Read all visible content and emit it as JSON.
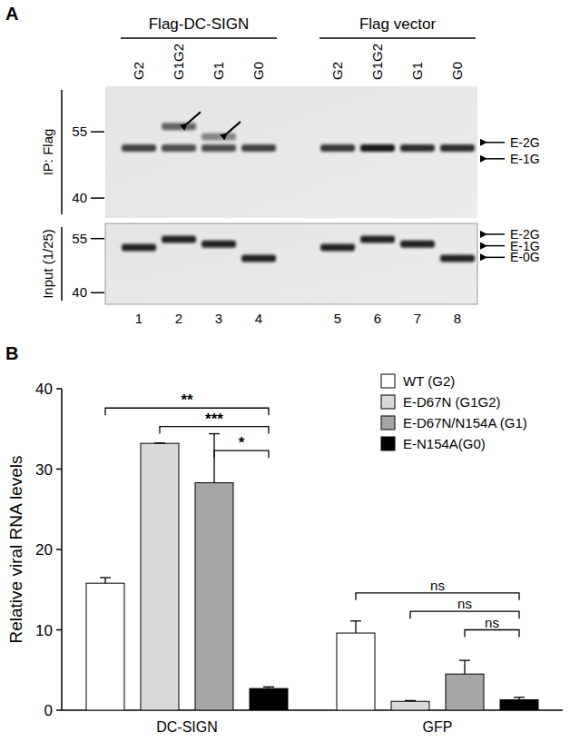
{
  "blot": {
    "label": "A",
    "groups": [
      {
        "label": "Flag-DC-SIGN",
        "lanes": [
          0,
          3
        ]
      },
      {
        "label": "Flag vector",
        "lanes": [
          4,
          7
        ]
      }
    ],
    "lanes": [
      "G2",
      "G1G2",
      "G1",
      "G0",
      "G2",
      "G1G2",
      "G1",
      "G0"
    ],
    "lane_numbers": [
      "1",
      "2",
      "3",
      "4",
      "5",
      "6",
      "7",
      "8"
    ],
    "panels": [
      {
        "label": "IP: Flag",
        "mw_range": [
          65.3,
          35.5
        ],
        "markers": [
          55,
          40
        ],
        "bands": [
          {
            "lane": 0,
            "mw": 51.3,
            "intensity": 0.75
          },
          {
            "lane": 1,
            "mw": 51.3,
            "intensity": 0.7
          },
          {
            "lane": 1,
            "mw": 56.2,
            "intensity": 0.6
          },
          {
            "lane": 2,
            "mw": 51.3,
            "intensity": 0.7
          },
          {
            "lane": 2,
            "mw": 53.9,
            "intensity": 0.45
          },
          {
            "lane": 3,
            "mw": 51.3,
            "intensity": 0.75
          },
          {
            "lane": 4,
            "mw": 51.3,
            "intensity": 0.8
          },
          {
            "lane": 5,
            "mw": 51.3,
            "intensity": 0.95
          },
          {
            "lane": 6,
            "mw": 51.3,
            "intensity": 0.85
          },
          {
            "lane": 7,
            "mw": 51.3,
            "intensity": 0.85
          }
        ],
        "arrows": [
          {
            "lane": 1,
            "mw": 56.2
          },
          {
            "lane": 2,
            "mw": 54.0
          }
        ],
        "right_labels": [
          {
            "label": "E-2G",
            "mw": 52.6
          },
          {
            "label": "E-1G",
            "mw": 48.9
          }
        ]
      },
      {
        "label": "Input (1/25)",
        "mw_range": [
          59.2,
          36.8
        ],
        "markers": [
          55,
          40
        ],
        "bands": [
          {
            "lane": 0,
            "mw": 52.5,
            "intensity": 0.9
          },
          {
            "lane": 1,
            "mw": 54.8,
            "intensity": 0.9
          },
          {
            "lane": 2,
            "mw": 53.5,
            "intensity": 0.9
          },
          {
            "lane": 3,
            "mw": 49.5,
            "intensity": 0.9
          },
          {
            "lane": 4,
            "mw": 52.5,
            "intensity": 0.9
          },
          {
            "lane": 5,
            "mw": 54.8,
            "intensity": 0.9
          },
          {
            "lane": 6,
            "mw": 53.5,
            "intensity": 0.9
          },
          {
            "lane": 7,
            "mw": 49.5,
            "intensity": 0.9
          }
        ],
        "arrows": [],
        "right_labels": [
          {
            "label": "E-2G",
            "mw": 56.2
          },
          {
            "label": "E-1G",
            "mw": 53.0
          },
          {
            "label": "E-0G",
            "mw": 49.8
          }
        ]
      }
    ]
  },
  "chart_data": {
    "type": "bar",
    "title": "B",
    "categories": [
      "DC-SIGN",
      "GFP"
    ],
    "y_label": "Relative viral RNA levels",
    "ylim": [
      0,
      40
    ],
    "yticks": [
      0,
      10,
      20,
      30,
      40
    ],
    "legend": "top-right",
    "series": [
      {
        "name": "WT (G2)",
        "color": "#ffffff",
        "values": [
          15.8,
          9.6
        ],
        "errors": [
          0.7,
          1.5
        ]
      },
      {
        "name": "E-D67N (G1G2)",
        "color": "#d9d9d9",
        "values": [
          33.2,
          1.1
        ],
        "errors": [
          0.05,
          0.1
        ]
      },
      {
        "name": "E-D67N/N154A (G1)",
        "color": "#a6a6a6",
        "values": [
          28.3,
          4.5
        ],
        "errors": [
          6.1,
          1.7
        ]
      },
      {
        "name": "E-N154A(G0)",
        "color": "#000000",
        "values": [
          2.7,
          1.3
        ],
        "errors": [
          0.2,
          0.3
        ]
      }
    ],
    "annotations": [
      {
        "label": "**",
        "category": 0,
        "from": 0,
        "to": 3,
        "y": 37.6
      },
      {
        "label": "***",
        "category": 0,
        "from": 1,
        "to": 3,
        "y": 35.3
      },
      {
        "label": "*",
        "category": 0,
        "from": 2,
        "to": 3,
        "y": 32.3
      },
      {
        "label": "ns",
        "category": 1,
        "from": 0,
        "to": 3,
        "y": 14.6
      },
      {
        "label": "ns",
        "category": 1,
        "from": 1,
        "to": 3,
        "y": 12.3
      },
      {
        "label": "ns",
        "category": 1,
        "from": 2,
        "to": 3,
        "y": 10.0
      }
    ]
  }
}
